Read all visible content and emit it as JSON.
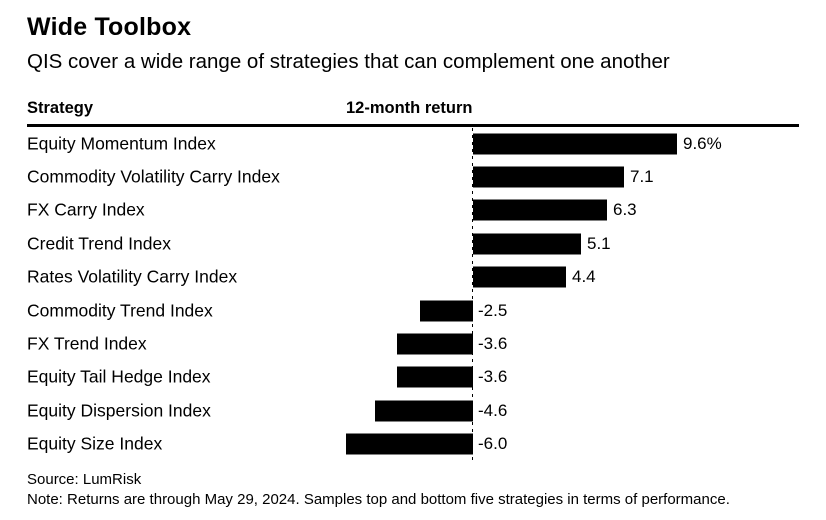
{
  "page": {
    "title": "Wide Toolbox",
    "subtitle": "QIS cover a wide range of strategies that can complement one another"
  },
  "columns": {
    "strategy": "Strategy",
    "return": "12-month return"
  },
  "chart_data": {
    "type": "bar",
    "orientation": "horizontal",
    "title": "Wide Toolbox",
    "subtitle": "QIS cover a wide range of strategies that can complement one another",
    "xlabel": "12-month return",
    "ylabel": "Strategy",
    "unit": "%",
    "baseline": 0,
    "xlim": [
      -7,
      10.5
    ],
    "grid": false,
    "bar_color": "#000000",
    "categories": [
      "Equity Momentum Index",
      "Commodity Volatility Carry Index",
      "FX Carry Index",
      "Credit Trend Index",
      "Rates Volatility Carry Index",
      "Commodity Trend Index",
      "FX Trend Index",
      "Equity Tail Hedge Index",
      "Equity Dispersion Index",
      "Equity Size Index"
    ],
    "values": [
      9.6,
      7.1,
      6.3,
      5.1,
      4.4,
      -2.5,
      -3.6,
      -3.6,
      -4.6,
      -6.0
    ],
    "value_labels": [
      "9.6%",
      "7.1",
      "6.3",
      "5.1",
      "4.4",
      "-2.5",
      "-3.6",
      "-3.6",
      "-4.6",
      "-6.0"
    ]
  },
  "footer": {
    "source": "Source: LumRisk",
    "note": "Note: Returns are through May 29, 2024. Samples top and bottom five strategies in terms of performance."
  }
}
